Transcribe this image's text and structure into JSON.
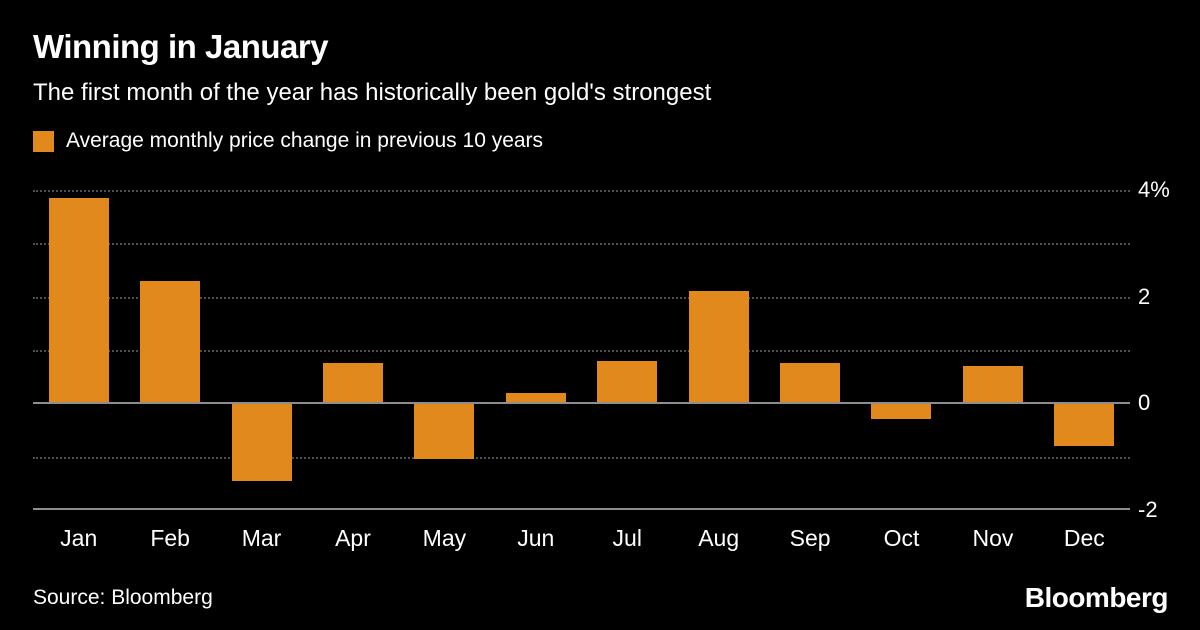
{
  "header": {
    "title": "Winning in January",
    "subtitle": "The first month of the year has historically been gold's strongest"
  },
  "legend": {
    "label": "Average monthly price change in previous 10 years",
    "color": "#e2891d"
  },
  "chart_data": {
    "type": "bar",
    "title": "Winning in January",
    "subtitle": "The first month of the year has historically been gold's strongest",
    "series_label": "Average monthly price change in previous 10 years",
    "categories": [
      "Jan",
      "Feb",
      "Mar",
      "Apr",
      "May",
      "Jun",
      "Jul",
      "Aug",
      "Sep",
      "Oct",
      "Nov",
      "Dec"
    ],
    "values": [
      3.85,
      2.3,
      -1.45,
      0.75,
      -1.05,
      0.2,
      0.8,
      2.1,
      0.75,
      -0.3,
      0.7,
      -0.8
    ],
    "unit": "%",
    "ylim": [
      -2,
      4
    ],
    "yticks": [
      {
        "value": 4,
        "label": "4%"
      },
      {
        "value": 2,
        "label": "2"
      },
      {
        "value": 0,
        "label": "0"
      },
      {
        "value": -2,
        "label": "-2"
      }
    ],
    "dotted_gridlines": [
      4,
      3,
      2,
      1,
      -1
    ],
    "zero_line": 0,
    "bar_color": "#e2891d",
    "background": "#000000",
    "grid": "dotted horizontal",
    "legend_position": "top-left",
    "axis_label_side": "right"
  },
  "footer": {
    "source": "Source: Bloomberg",
    "brand": "Bloomberg"
  }
}
